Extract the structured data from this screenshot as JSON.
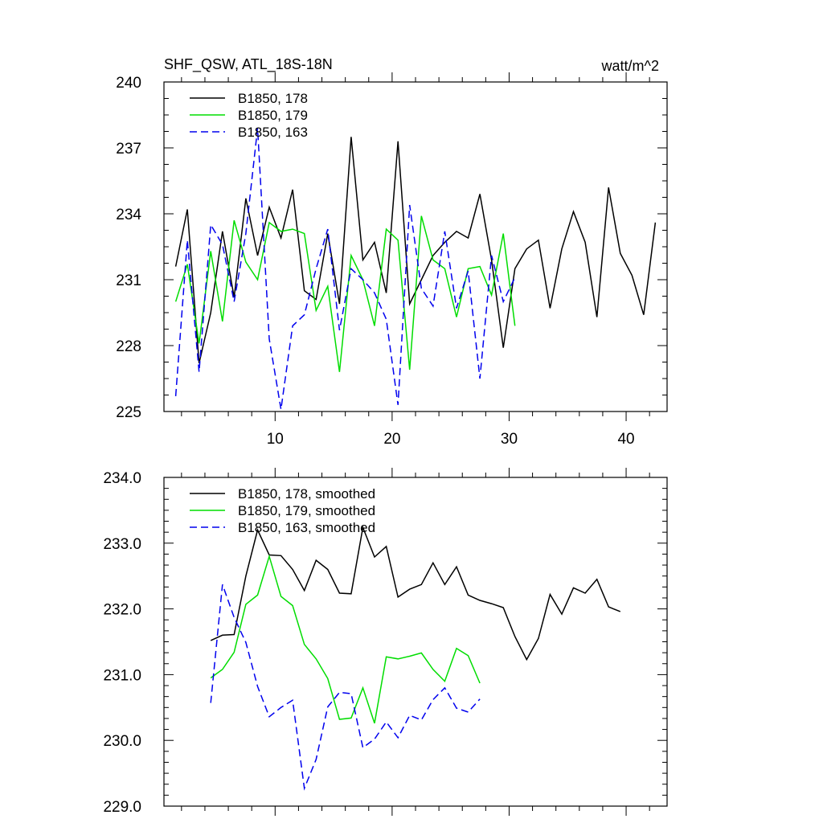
{
  "chart_data": [
    {
      "type": "line",
      "title": "SHF_QSW, ATL_18S-18N",
      "units": "watt/m^2",
      "xlabel": "",
      "ylabel": "",
      "xlim": [
        0.5,
        43.5
      ],
      "ylim": [
        225,
        240
      ],
      "xticks": [
        10,
        20,
        30,
        40
      ],
      "xticklabels": [
        "10",
        "20",
        "30",
        "40"
      ],
      "yticks": [
        225,
        228,
        231,
        234,
        237,
        240
      ],
      "yticklabels": [
        "225",
        "228",
        "231",
        "234",
        "237",
        "240"
      ],
      "legend_position": "top-left",
      "series": [
        {
          "name": "B1850, 178",
          "color": "#000000",
          "dash": "solid",
          "x_start": 1.5,
          "values": [
            231.6,
            234.2,
            227.2,
            229.5,
            233.2,
            230.2,
            234.7,
            232.1,
            234.3,
            232.9,
            235.1,
            230.5,
            230.1,
            233.1,
            229.9,
            237.5,
            231.9,
            232.7,
            230.4,
            237.3,
            229.9,
            231.0,
            232.1,
            232.7,
            233.2,
            232.9,
            234.9,
            231.9,
            227.9,
            231.5,
            232.4,
            232.8,
            229.7,
            232.4,
            234.1,
            232.7,
            229.3,
            235.2,
            232.2,
            231.2,
            229.4,
            233.6
          ]
        },
        {
          "name": "B1850, 179",
          "color": "#00dd00",
          "dash": "solid",
          "x_start": 1.5,
          "values": [
            230.0,
            231.7,
            228.1,
            232.3,
            229.1,
            233.7,
            231.8,
            231.0,
            233.6,
            233.2,
            233.3,
            233.1,
            229.6,
            230.7,
            226.8,
            232.1,
            231.0,
            228.9,
            233.3,
            232.8,
            226.9,
            233.9,
            231.9,
            231.5,
            229.3,
            231.5,
            231.6,
            230.3,
            233.1,
            228.9
          ]
        },
        {
          "name": "B1850, 163",
          "color": "#0000ee",
          "dash": "dashed",
          "x_start": 1.5,
          "values": [
            225.7,
            232.8,
            226.8,
            233.5,
            232.6,
            230.0,
            233.1,
            237.9,
            228.3,
            225.1,
            228.9,
            229.4,
            231.5,
            233.3,
            228.7,
            231.5,
            231.0,
            230.4,
            229.2,
            225.3,
            234.4,
            230.6,
            229.8,
            233.2,
            229.7,
            231.4,
            226.5,
            232.1,
            230.0,
            231.1
          ]
        }
      ]
    },
    {
      "type": "line",
      "title": "",
      "xlabel": "",
      "ylabel": "",
      "xlim": [
        0.5,
        43.5
      ],
      "ylim": [
        229.0,
        234.0
      ],
      "xticks": [
        10,
        20,
        30,
        40
      ],
      "xticklabels": [],
      "yticks": [
        229.0,
        230.0,
        231.0,
        232.0,
        233.0,
        234.0
      ],
      "yticklabels": [
        "229.0",
        "230.0",
        "231.0",
        "232.0",
        "233.0",
        "234.0"
      ],
      "legend_position": "top-left",
      "series": [
        {
          "name": "B1850, 178, smoothed",
          "color": "#000000",
          "dash": "solid",
          "x_start": 4.5,
          "values": [
            231.52,
            231.6,
            231.61,
            232.5,
            233.2,
            232.82,
            232.81,
            232.6,
            232.28,
            232.74,
            232.6,
            232.24,
            232.23,
            233.24,
            232.79,
            232.95,
            232.18,
            232.3,
            232.37,
            232.7,
            232.37,
            232.64,
            232.21,
            232.13,
            232.08,
            232.02,
            231.58,
            231.23,
            231.55,
            232.22,
            231.92,
            232.32,
            232.24,
            232.45,
            232.03,
            231.96
          ]
        },
        {
          "name": "B1850, 179, smoothed",
          "color": "#00dd00",
          "dash": "solid",
          "x_start": 4.5,
          "values": [
            230.95,
            231.08,
            231.34,
            232.07,
            232.21,
            232.8,
            232.19,
            232.05,
            231.46,
            231.24,
            230.94,
            230.32,
            230.34,
            230.8,
            230.26,
            231.27,
            231.24,
            231.28,
            231.33,
            231.08,
            230.9,
            231.4,
            231.29,
            230.87
          ]
        },
        {
          "name": "B1850, 163, smoothed",
          "color": "#0000ee",
          "dash": "dashed",
          "x_start": 4.5,
          "values": [
            230.57,
            232.37,
            231.87,
            231.49,
            230.82,
            230.36,
            230.5,
            230.61,
            229.27,
            229.71,
            230.51,
            230.73,
            230.71,
            229.89,
            230.02,
            230.28,
            230.04,
            230.38,
            230.31,
            230.62,
            230.8,
            230.49,
            230.43,
            230.63
          ]
        }
      ]
    }
  ]
}
